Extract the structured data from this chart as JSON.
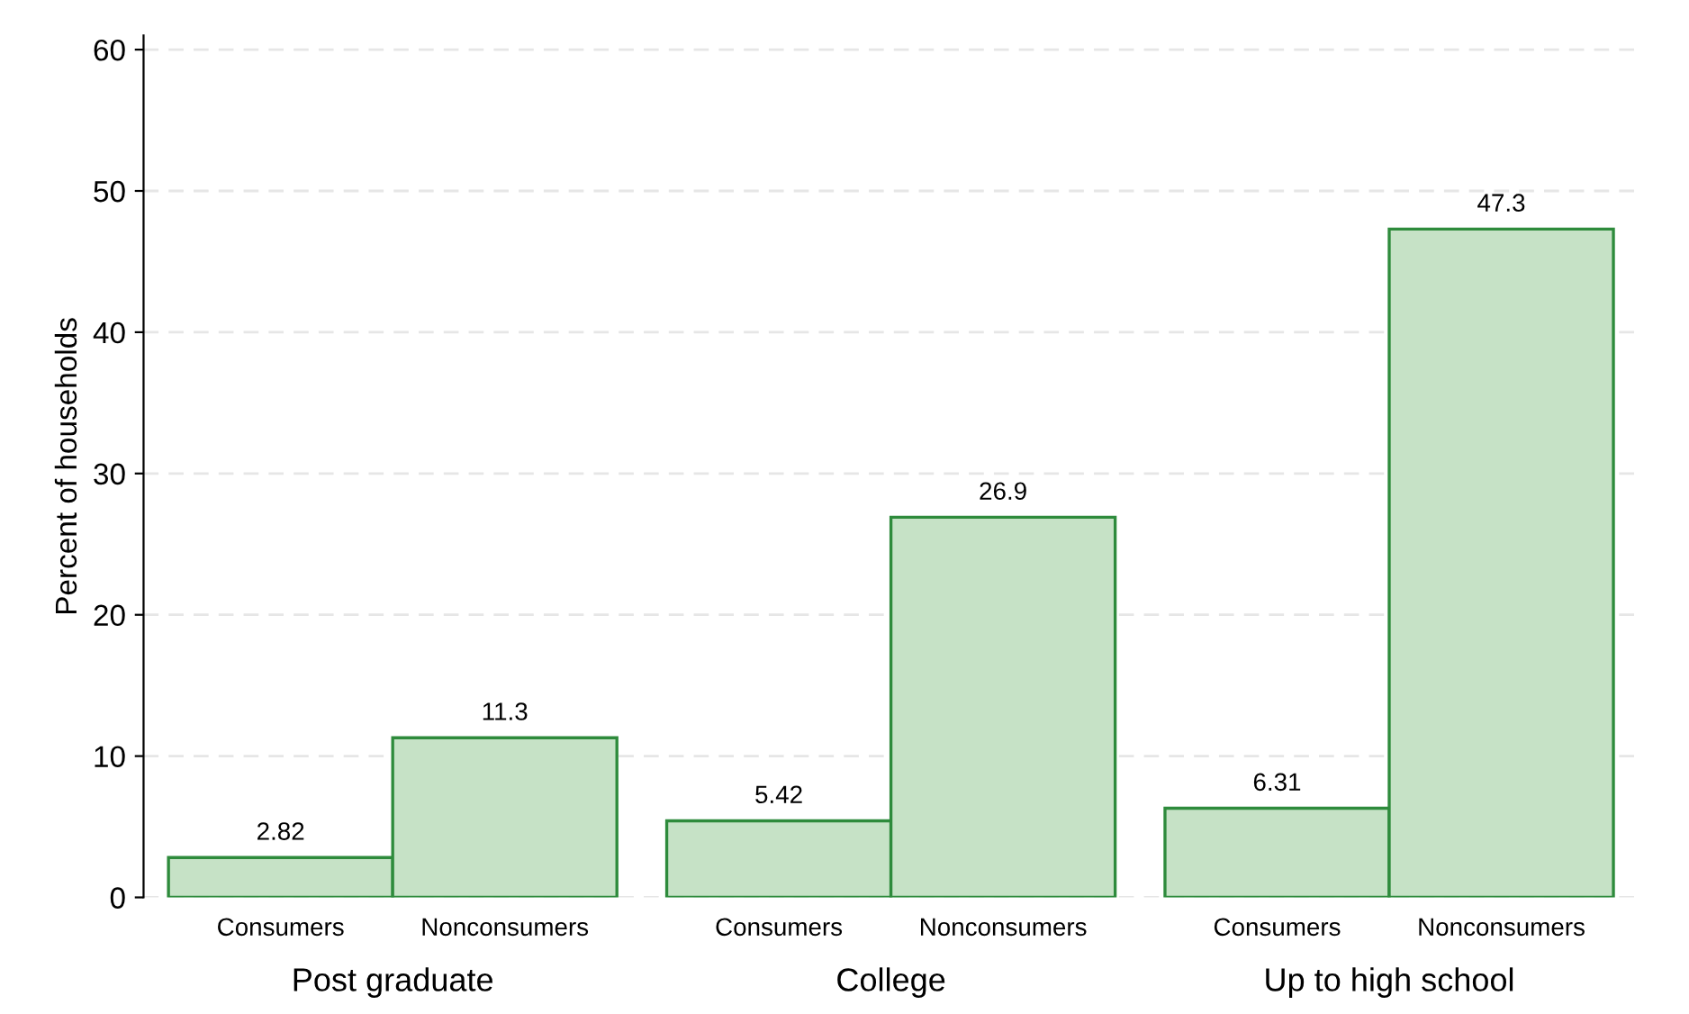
{
  "chart_data": {
    "type": "bar",
    "ylabel": "Percent of households",
    "categories": [
      "Post graduate",
      "College",
      "Up to high school"
    ],
    "series": [
      {
        "name": "Consumers",
        "color": "#c6e2c6",
        "values": [
          2.82,
          5.42,
          6.31
        ]
      },
      {
        "name": "Nonconsumers",
        "color": "#c6e2c6",
        "values": [
          11.3,
          26.9,
          47.3
        ]
      }
    ],
    "ylim": [
      0,
      61
    ],
    "yticks": [
      0,
      10,
      20,
      30,
      40,
      50,
      60
    ],
    "grid": "y",
    "data_labels": true,
    "legend": false
  }
}
